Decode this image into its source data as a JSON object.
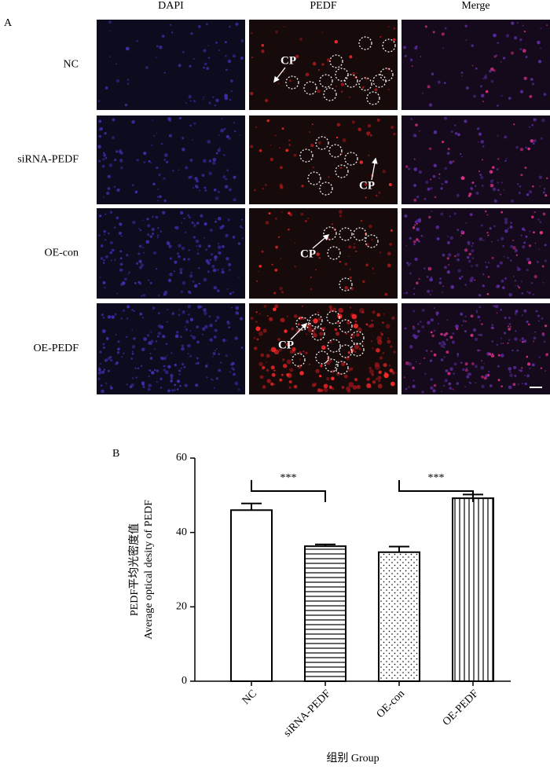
{
  "panel_a": {
    "label": "A",
    "columns": [
      "DAPI",
      "PEDF",
      "Merge"
    ],
    "rows": [
      "NC",
      "siRNA-PEDF",
      "OE-con",
      "OE-PEDF"
    ],
    "annotation": "CP"
  },
  "chart_data": {
    "type": "bar",
    "panel_label": "B",
    "y_label": [
      "PEDF平均光密度值",
      "Average optical desity of PEDF"
    ],
    "x_label": "组别 Group",
    "categories": [
      "NC",
      "siRNA-PEDF",
      "OE-con",
      "OE-PEDF"
    ],
    "values": [
      46,
      36.3,
      34.7,
      49.2
    ],
    "errors": [
      1.8,
      0.5,
      1.5,
      1.0
    ],
    "patterns": [
      "none",
      "horizontal",
      "dots",
      "vertical"
    ],
    "ylim": [
      0,
      60
    ],
    "yticks": [
      0,
      20,
      40,
      60
    ],
    "annotations": [
      "***",
      "***"
    ]
  }
}
